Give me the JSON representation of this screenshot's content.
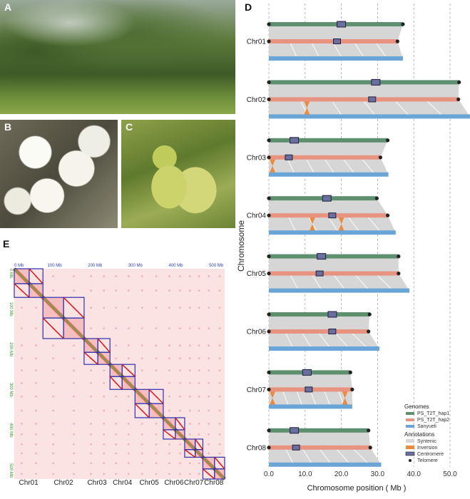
{
  "panels": {
    "A": "A",
    "B": "B",
    "C": "C",
    "D": "D",
    "E": "E"
  },
  "chart_data": [
    {
      "panel": "D",
      "type": "synteny",
      "xlabel": "Chromosome position ( Mb )",
      "ylabel": "Chromosome",
      "xlim": [
        0,
        55
      ],
      "xticks": [
        "0.0",
        "10.0",
        "20.0",
        "30.0",
        "40.0",
        "50.0"
      ],
      "xtick_values": [
        0,
        10,
        20,
        30,
        40,
        50
      ],
      "grid": "vertical dashed",
      "legend_placement": "bottom-right",
      "legend": {
        "genomes_title": "Genomes",
        "genomes": [
          {
            "name": "PS_T2T_hap1",
            "color": "#5e8f6f"
          },
          {
            "name": "PS_T2T_hap2",
            "color": "#e8937f"
          },
          {
            "name": "Sanyueli",
            "color": "#6aa5d8"
          }
        ],
        "annotations_title": "Annotations",
        "annotations": [
          {
            "name": "Syntenic",
            "color": "#d6d6d6"
          },
          {
            "name": "Inversion",
            "color": "#ee8a3c"
          },
          {
            "name": "Centromere",
            "color": "#6a6f9e"
          },
          {
            "name": "Telomere",
            "color": "#222222"
          }
        ]
      },
      "chromosomes": [
        {
          "name": "Chr01",
          "hap1": 37.0,
          "hap2": 35.5,
          "sanyueli": 37.0,
          "cen_hap1": 20.0,
          "cen_hap2": 18.8,
          "inversions": []
        },
        {
          "name": "Chr02",
          "hap1": 52.5,
          "hap2": 52.3,
          "sanyueli": 55.5,
          "cen_hap1": 29.5,
          "cen_hap2": 28.5,
          "inversions": [
            10.5
          ]
        },
        {
          "name": "Chr03",
          "hap1": 32.8,
          "hap2": 30.8,
          "sanyueli": 33.0,
          "cen_hap1": 7.0,
          "cen_hap2": 5.5,
          "inversions": [
            1.0
          ]
        },
        {
          "name": "Chr04",
          "hap1": 29.8,
          "hap2": 32.8,
          "sanyueli": 35.0,
          "cen_hap1": 16.0,
          "cen_hap2": 17.5,
          "inversions": [
            12.0,
            20.0
          ]
        },
        {
          "name": "Chr05",
          "hap1": 35.8,
          "hap2": 35.8,
          "sanyueli": 38.8,
          "cen_hap1": 14.5,
          "cen_hap2": 14.0,
          "inversions": []
        },
        {
          "name": "Chr06",
          "hap1": 27.8,
          "hap2": 27.5,
          "sanyueli": 30.5,
          "cen_hap1": 17.5,
          "cen_hap2": 17.5,
          "inversions": []
        },
        {
          "name": "Chr07",
          "hap1": 22.5,
          "hap2": 23.0,
          "sanyueli": 23.0,
          "cen_hap1": 10.5,
          "cen_hap2": 11.0,
          "inversions": [
            1.0,
            21.0
          ]
        },
        {
          "name": "Chr08",
          "hap1": 27.5,
          "hap2": 28.0,
          "sanyueli": 31.0,
          "cen_hap1": 7.0,
          "cen_hap2": 7.5,
          "inversions": []
        }
      ]
    },
    {
      "panel": "E",
      "type": "heatmap",
      "xticks": [
        "0 Mb",
        "100 Mb",
        "200 Mb",
        "300 Mb",
        "400 Mb",
        "500 Mb"
      ],
      "yticks": [
        "0 Mb",
        "100 Mb",
        "200 Mb",
        "300 Mb",
        "400 Mb",
        "500 Mb"
      ],
      "tick_values": [
        0,
        100,
        200,
        300,
        400,
        500
      ],
      "range": [
        0,
        521
      ],
      "chromosome_labels": [
        "Chr01",
        "Chr02",
        "Chr03",
        "Chr04",
        "Chr05",
        "Chr06",
        "Chr07",
        "Chr08"
      ],
      "haplotype_boundaries_mb": [
        0,
        37,
        71,
        122,
        173,
        207,
        237,
        267,
        299,
        334,
        369,
        399,
        422,
        448,
        467,
        496,
        521
      ],
      "colors": {
        "contact": "#d7191c",
        "background": "#fbe3e3",
        "box": "#2b2fb0",
        "tick_x": "#2b3fbf",
        "tick_y": "#3a9a2a"
      }
    }
  ]
}
